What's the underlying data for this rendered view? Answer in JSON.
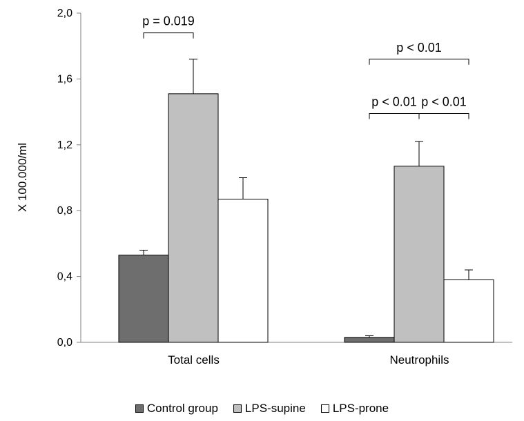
{
  "chart_data": {
    "type": "bar",
    "title": "",
    "xlabel": "",
    "ylabel": "X 100.000/ml",
    "ylim": [
      0,
      2.0
    ],
    "yticks": [
      "0,0",
      "0,4",
      "0,8",
      "1,2",
      "1,6",
      "2,0"
    ],
    "ytick_values": [
      0,
      0.4,
      0.8,
      1.2,
      1.6,
      2.0
    ],
    "categories": [
      "Total cells",
      "Neutrophils"
    ],
    "series": [
      {
        "name": "Control group",
        "values": [
          0.53,
          0.03
        ],
        "errors": [
          0.03,
          0.01
        ],
        "color": "#6e6e6e"
      },
      {
        "name": "LPS-supine",
        "values": [
          1.51,
          1.07
        ],
        "errors": [
          0.21,
          0.15
        ],
        "color": "#c0c0c0"
      },
      {
        "name": "LPS-prone",
        "values": [
          0.87,
          0.38
        ],
        "errors": [
          0.13,
          0.06
        ],
        "color": "#ffffff"
      }
    ],
    "grid": false,
    "legend_position": "bottom",
    "annotations": [
      {
        "text": "p = 0.019",
        "category": 0,
        "from_series": 0,
        "to_series": 1,
        "level": 1.88
      },
      {
        "text": "p < 0.01",
        "category": 1,
        "from_series": 0,
        "to_series": 1,
        "level": 1.39
      },
      {
        "text": "p < 0.01",
        "category": 1,
        "from_series": 1,
        "to_series": 2,
        "level": 1.39
      },
      {
        "text": "p < 0.01",
        "category": 1,
        "from_series": 0,
        "to_series": 2,
        "level": 1.72
      }
    ]
  }
}
